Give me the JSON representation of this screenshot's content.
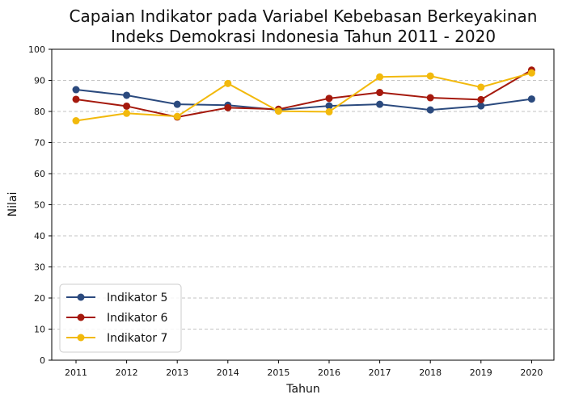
{
  "chart_data": {
    "type": "line",
    "title_line1": "Capaian Indikator pada Variabel Kebebasan Berkeyakinan",
    "title_line2": "Indeks Demokrasi Indonesia Tahun 2011 - 2020",
    "xlabel": "Tahun",
    "ylabel": "Nilai",
    "ylim": [
      0,
      100
    ],
    "yticks": [
      0,
      10,
      20,
      30,
      40,
      50,
      60,
      70,
      80,
      90,
      100
    ],
    "categories": [
      "2011",
      "2012",
      "2013",
      "2014",
      "2015",
      "2016",
      "2017",
      "2018",
      "2019",
      "2020"
    ],
    "grid": "horizontal dashed",
    "legend_position": "bottom-left",
    "series": [
      {
        "name": "Indikator 5",
        "color": "#2b4a7e",
        "values": [
          87.0,
          85.2,
          82.3,
          82.0,
          80.5,
          81.8,
          82.3,
          80.5,
          81.8,
          84.0
        ]
      },
      {
        "name": "Indikator 6",
        "color": "#a5190d",
        "values": [
          83.9,
          81.7,
          78.2,
          81.2,
          80.7,
          84.2,
          86.1,
          84.4,
          83.8,
          93.3
        ]
      },
      {
        "name": "Indikator 7",
        "color": "#f2b90c",
        "values": [
          77.0,
          79.4,
          78.4,
          89.0,
          80.1,
          79.9,
          91.1,
          91.4,
          87.8,
          92.4
        ]
      }
    ]
  }
}
